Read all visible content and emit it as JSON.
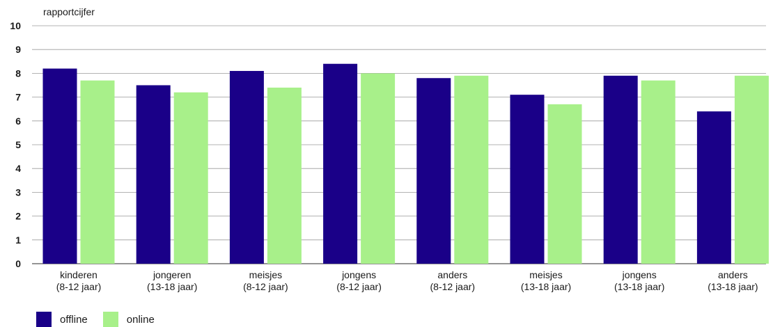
{
  "chart_data": {
    "type": "bar",
    "ylabel": "rapportcijfer",
    "ylim": [
      0,
      10
    ],
    "yticks": [
      0,
      1,
      2,
      3,
      4,
      5,
      6,
      7,
      8,
      9,
      10
    ],
    "grid": true,
    "legend_position": "bottom-left",
    "categories": [
      [
        "kinderen",
        "(8-12 jaar)"
      ],
      [
        "jongeren",
        "(13-18 jaar)"
      ],
      [
        "meisjes",
        "(8-12 jaar)"
      ],
      [
        "jongens",
        "(8-12 jaar)"
      ],
      [
        "anders",
        "(8-12 jaar)"
      ],
      [
        "meisjes",
        "(13-18 jaar)"
      ],
      [
        "jongens",
        "(13-18 jaar)"
      ],
      [
        "anders",
        "(13-18 jaar)"
      ]
    ],
    "series": [
      {
        "name": "offline",
        "color": "#1a0088",
        "values": [
          8.2,
          7.5,
          8.1,
          8.4,
          7.8,
          7.1,
          7.9,
          6.4
        ]
      },
      {
        "name": "online",
        "color": "#a8f08a",
        "values": [
          7.7,
          7.2,
          7.4,
          8.0,
          7.9,
          6.7,
          7.7,
          7.9
        ]
      }
    ]
  }
}
